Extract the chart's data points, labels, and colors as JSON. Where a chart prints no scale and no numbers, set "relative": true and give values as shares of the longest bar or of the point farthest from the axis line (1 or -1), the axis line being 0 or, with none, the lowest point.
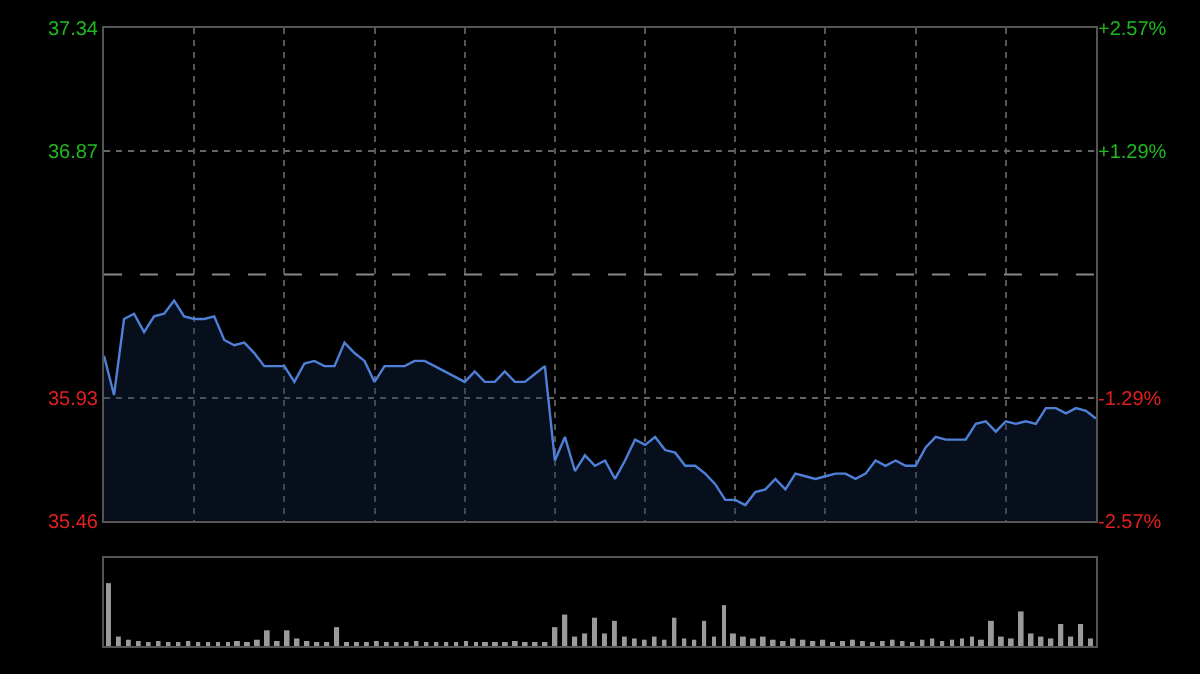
{
  "chart_data": [
    {
      "type": "area",
      "categories": [
        null,
        null,
        null,
        null,
        null,
        null,
        null,
        null,
        null,
        null,
        null,
        null,
        null,
        null,
        null,
        null,
        null,
        null,
        null,
        null,
        null,
        null,
        null,
        null,
        null,
        null,
        null,
        null,
        null,
        null,
        null,
        null,
        null,
        null,
        null,
        null,
        null,
        null,
        null,
        null,
        null,
        null,
        null,
        null,
        null,
        null,
        null,
        null,
        null,
        null,
        null,
        null,
        null,
        null,
        null,
        null,
        null,
        null,
        null,
        null,
        null,
        null,
        null,
        null,
        null,
        null,
        null,
        null,
        null,
        null,
        null,
        null,
        null,
        null,
        null,
        null,
        null,
        null,
        null,
        null,
        null,
        null,
        null,
        null,
        null,
        null,
        null,
        null,
        null,
        null,
        null,
        null,
        null,
        null,
        null,
        null,
        null,
        null,
        null,
        null
      ],
      "series": [
        {
          "color": "#4f80d8",
          "values": [
            36.09,
            35.94,
            36.23,
            36.25,
            36.18,
            36.24,
            36.25,
            36.3,
            36.24,
            36.23,
            36.23,
            36.24,
            36.15,
            36.13,
            36.14,
            36.1,
            36.05,
            36.05,
            36.05,
            35.99,
            36.06,
            36.07,
            36.05,
            36.05,
            36.14,
            36.1,
            36.07,
            35.99,
            36.05,
            36.05,
            36.05,
            36.07,
            36.07,
            36.05,
            36.03,
            36.01,
            35.99,
            36.03,
            35.99,
            35.99,
            36.03,
            35.99,
            35.99,
            36.02,
            36.05,
            35.69,
            35.78,
            35.65,
            35.71,
            35.67,
            35.69,
            35.62,
            35.69,
            35.77,
            35.75,
            35.78,
            35.73,
            35.72,
            35.67,
            35.67,
            35.64,
            35.6,
            35.54,
            35.54,
            35.52,
            35.57,
            35.58,
            35.62,
            35.58,
            35.64,
            35.63,
            35.62,
            35.63,
            35.64,
            35.64,
            35.62,
            35.64,
            35.69,
            35.67,
            35.69,
            35.67,
            35.67,
            35.74,
            35.78,
            35.77,
            35.77,
            35.77,
            35.83,
            35.84,
            35.8,
            35.84,
            35.83,
            35.84,
            35.83,
            35.89,
            35.89,
            35.87,
            35.89,
            35.88,
            35.85
          ]
        }
      ],
      "ylim": [
        35.46,
        37.34
      ],
      "yticks": [
        35.46,
        35.93,
        36.87,
        37.34
      ],
      "y2lim": [
        -2.57,
        2.57
      ],
      "y2ticks": [
        {
          "value": -2.57,
          "label": "-2.57%"
        },
        {
          "value": -1.29,
          "label": "-1.29%"
        },
        {
          "value": 1.29,
          "label": "+1.29%"
        },
        {
          "value": 2.57,
          "label": "+2.57%"
        }
      ],
      "ref_lines": [
        {
          "axis": "y",
          "value": 36.4,
          "color": "#888888",
          "line_style": "dashed"
        }
      ],
      "grid": true,
      "tick_labels": "y"
    },
    {
      "type": "bar",
      "relative": true,
      "categories": [
        null,
        null,
        null,
        null,
        null,
        null,
        null,
        null,
        null,
        null,
        null,
        null,
        null,
        null,
        null,
        null,
        null,
        null,
        null,
        null,
        null,
        null,
        null,
        null,
        null,
        null,
        null,
        null,
        null,
        null,
        null,
        null,
        null,
        null,
        null,
        null,
        null,
        null,
        null,
        null,
        null,
        null,
        null,
        null,
        null,
        null,
        null,
        null,
        null,
        null,
        null,
        null,
        null,
        null,
        null,
        null,
        null,
        null,
        null,
        null,
        null,
        null,
        null,
        null,
        null,
        null,
        null,
        null,
        null,
        null,
        null,
        null,
        null,
        null,
        null,
        null,
        null,
        null,
        null,
        null,
        null,
        null,
        null,
        null,
        null,
        null,
        null,
        null,
        null,
        null,
        null,
        null,
        null,
        null,
        null,
        null,
        null,
        null,
        null,
        null
      ],
      "series": [
        {
          "color": "#9a9a9a",
          "values": [
            1.0,
            0.15,
            0.1,
            0.08,
            0.06,
            0.08,
            0.05,
            0.06,
            0.08,
            0.06,
            0.05,
            0.06,
            0.05,
            0.08,
            0.06,
            0.1,
            0.25,
            0.08,
            0.25,
            0.12,
            0.08,
            0.05,
            0.06,
            0.3,
            0.06,
            0.05,
            0.06,
            0.08,
            0.05,
            0.06,
            0.05,
            0.08,
            0.06,
            0.05,
            0.06,
            0.05,
            0.08,
            0.06,
            0.05,
            0.06,
            0.05,
            0.08,
            0.06,
            0.05,
            0.06,
            0.3,
            0.5,
            0.15,
            0.2,
            0.45,
            0.2,
            0.4,
            0.15,
            0.12,
            0.1,
            0.15,
            0.1,
            0.45,
            0.12,
            0.1,
            0.4,
            0.15,
            0.65,
            0.2,
            0.15,
            0.12,
            0.15,
            0.1,
            0.08,
            0.12,
            0.1,
            0.08,
            0.1,
            0.06,
            0.08,
            0.1,
            0.08,
            0.06,
            0.08,
            0.1,
            0.08,
            0.06,
            0.1,
            0.12,
            0.08,
            0.1,
            0.12,
            0.15,
            0.1,
            0.4,
            0.15,
            0.12,
            0.55,
            0.2,
            0.15,
            0.12,
            0.35,
            0.15,
            0.35,
            0.12
          ]
        }
      ],
      "grid": false,
      "tick_labels": false
    }
  ]
}
